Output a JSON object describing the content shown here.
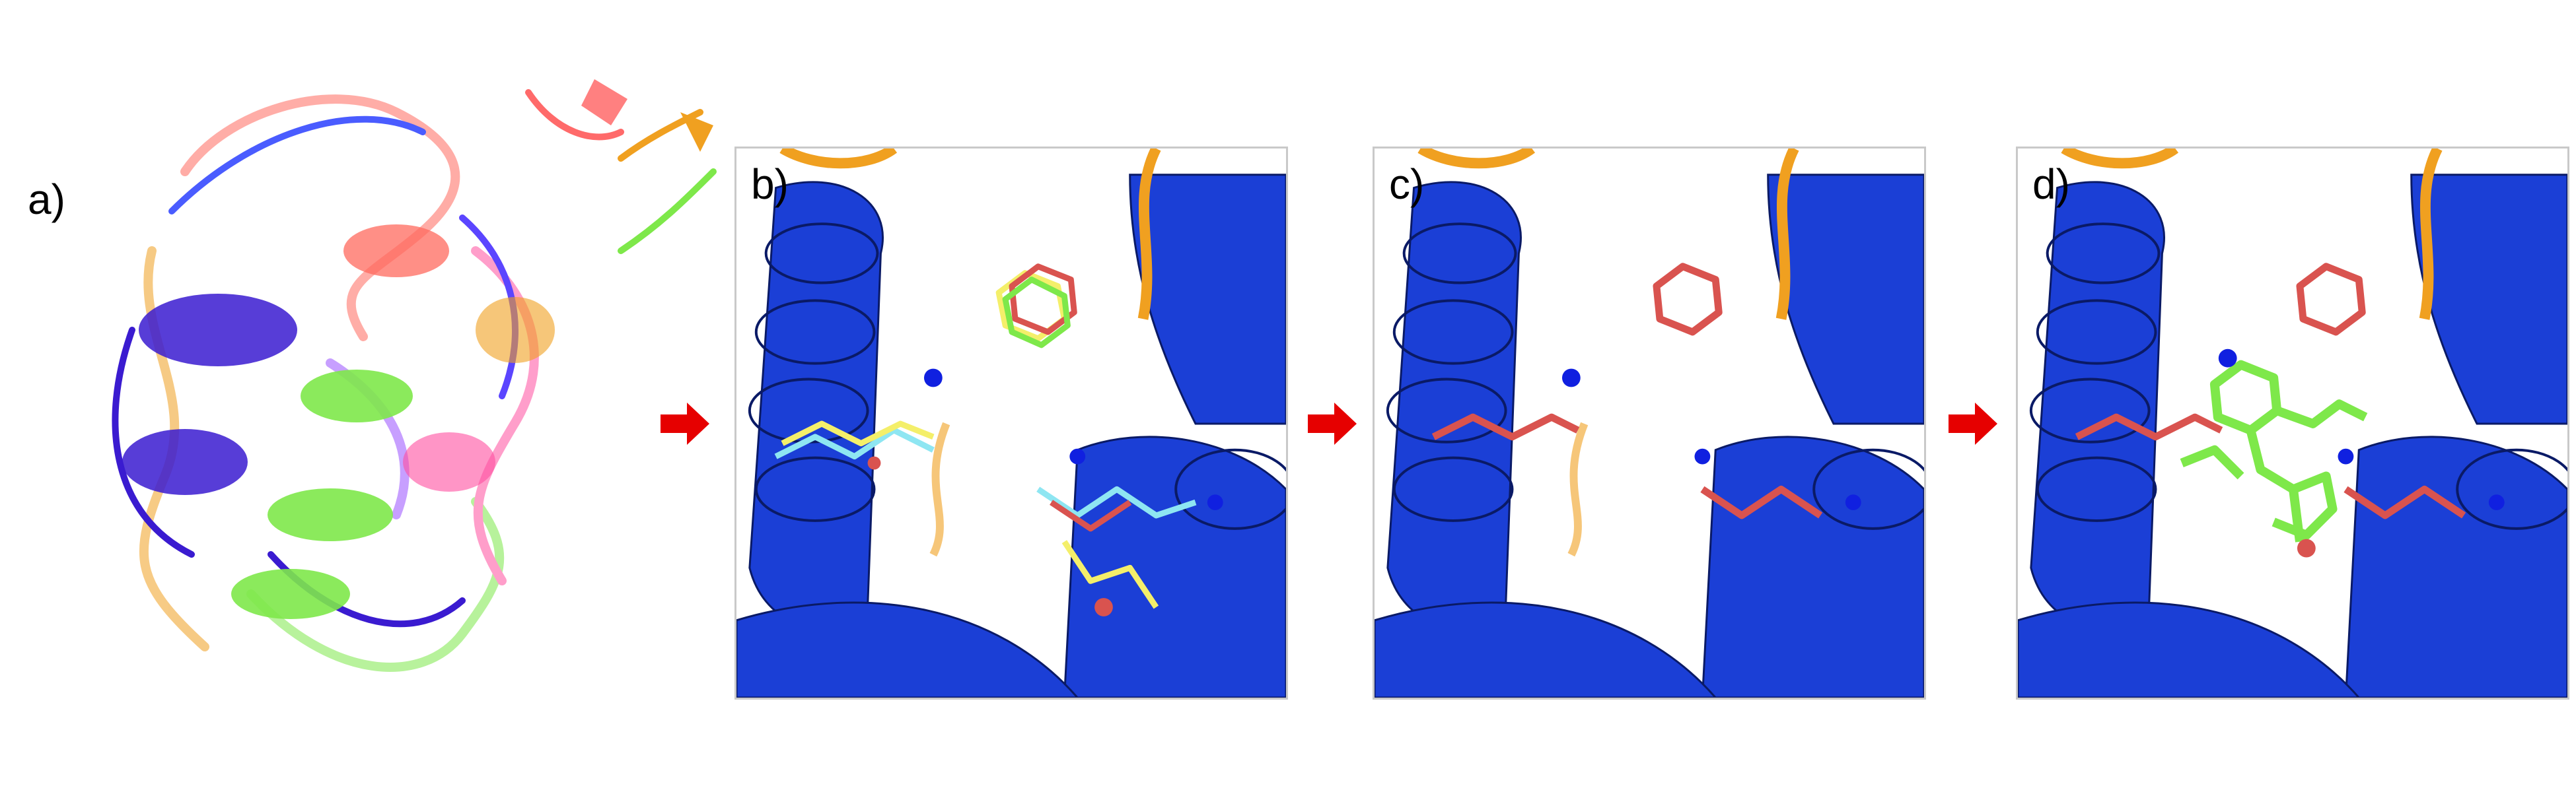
{
  "figure": {
    "panel_labels": [
      "a)",
      "b)",
      "c)",
      "d)"
    ]
  },
  "colors": {
    "helix_blue": "#1b3fd6",
    "loop_orange": "#f0a020",
    "ligand_red": "#d9534f",
    "ligand_green": "#7ee84a",
    "ligand_yellow": "#f4ef6a",
    "ligand_cyan": "#8ee6f2",
    "arrow_red": "#e60000",
    "panel_border": "#c9c9c9"
  },
  "icons": [
    "right-arrow-icon",
    "right-arrow-icon",
    "right-arrow-icon"
  ]
}
